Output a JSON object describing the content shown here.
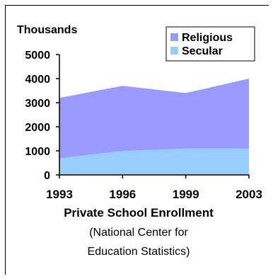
{
  "chart_data": {
    "type": "area",
    "stacked": false,
    "y_unit_label": "Thousands",
    "x": [
      "1993",
      "1996",
      "1999",
      "2003"
    ],
    "series": [
      {
        "name": "Religious",
        "color": "#9999ff",
        "values": [
          3200,
          3700,
          3400,
          4000
        ]
      },
      {
        "name": "Secular",
        "color": "#99ccff",
        "values": [
          700,
          1000,
          1100,
          1100
        ]
      }
    ],
    "yticks": [
      "0",
      "1000",
      "2000",
      "3000",
      "4000",
      "5000"
    ],
    "ylim": [
      0,
      5000
    ],
    "grid": false,
    "legend": "top-right",
    "title": "Private School Enrollment",
    "subtitle_lines": [
      "(National Center for",
      "Education Statistics)"
    ]
  }
}
